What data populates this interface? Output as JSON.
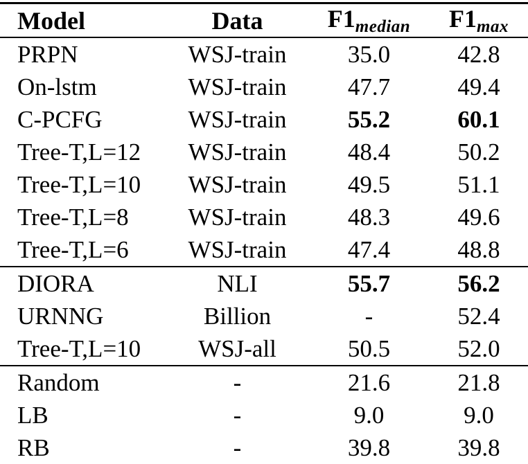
{
  "colors": {
    "text": "#000000",
    "background": "#ffffff",
    "rule": "#000000"
  },
  "table": {
    "columns": [
      {
        "label": "Model"
      },
      {
        "label": "Data"
      },
      {
        "label": "F1",
        "subscript": "median"
      },
      {
        "label": "F1",
        "subscript": "max"
      }
    ],
    "sections": [
      {
        "rows": [
          {
            "model": "PRPN",
            "data": "WSJ-train",
            "f1_median": "35.0",
            "f1_max": "42.8",
            "bold": false
          },
          {
            "model": "On-lstm",
            "data": "WSJ-train",
            "f1_median": "47.7",
            "f1_max": "49.4",
            "bold": false
          },
          {
            "model": "C-PCFG",
            "data": "WSJ-train",
            "f1_median": "55.2",
            "f1_max": "60.1",
            "bold": true
          },
          {
            "model": "Tree-T,L=12",
            "data": "WSJ-train",
            "f1_median": "48.4",
            "f1_max": "50.2",
            "bold": false
          },
          {
            "model": "Tree-T,L=10",
            "data": "WSJ-train",
            "f1_median": "49.5",
            "f1_max": "51.1",
            "bold": false
          },
          {
            "model": "Tree-T,L=8",
            "data": "WSJ-train",
            "f1_median": "48.3",
            "f1_max": "49.6",
            "bold": false
          },
          {
            "model": "Tree-T,L=6",
            "data": "WSJ-train",
            "f1_median": "47.4",
            "f1_max": "48.8",
            "bold": false
          }
        ]
      },
      {
        "rows": [
          {
            "model": "DIORA",
            "data": "NLI",
            "f1_median": "55.7",
            "f1_max": "56.2",
            "bold": true
          },
          {
            "model": "URNNG",
            "data": "Billion",
            "f1_median": "-",
            "f1_max": "52.4",
            "bold": false
          },
          {
            "model": "Tree-T,L=10",
            "data": "WSJ-all",
            "f1_median": "50.5",
            "f1_max": "52.0",
            "bold": false
          }
        ]
      },
      {
        "rows": [
          {
            "model": "Random",
            "data": "-",
            "f1_median": "21.6",
            "f1_max": "21.8",
            "bold": false
          },
          {
            "model": "LB",
            "data": "-",
            "f1_median": "9.0",
            "f1_max": "9.0",
            "bold": false
          },
          {
            "model": "RB",
            "data": "-",
            "f1_median": "39.8",
            "f1_max": "39.8",
            "bold": false
          }
        ]
      }
    ]
  }
}
